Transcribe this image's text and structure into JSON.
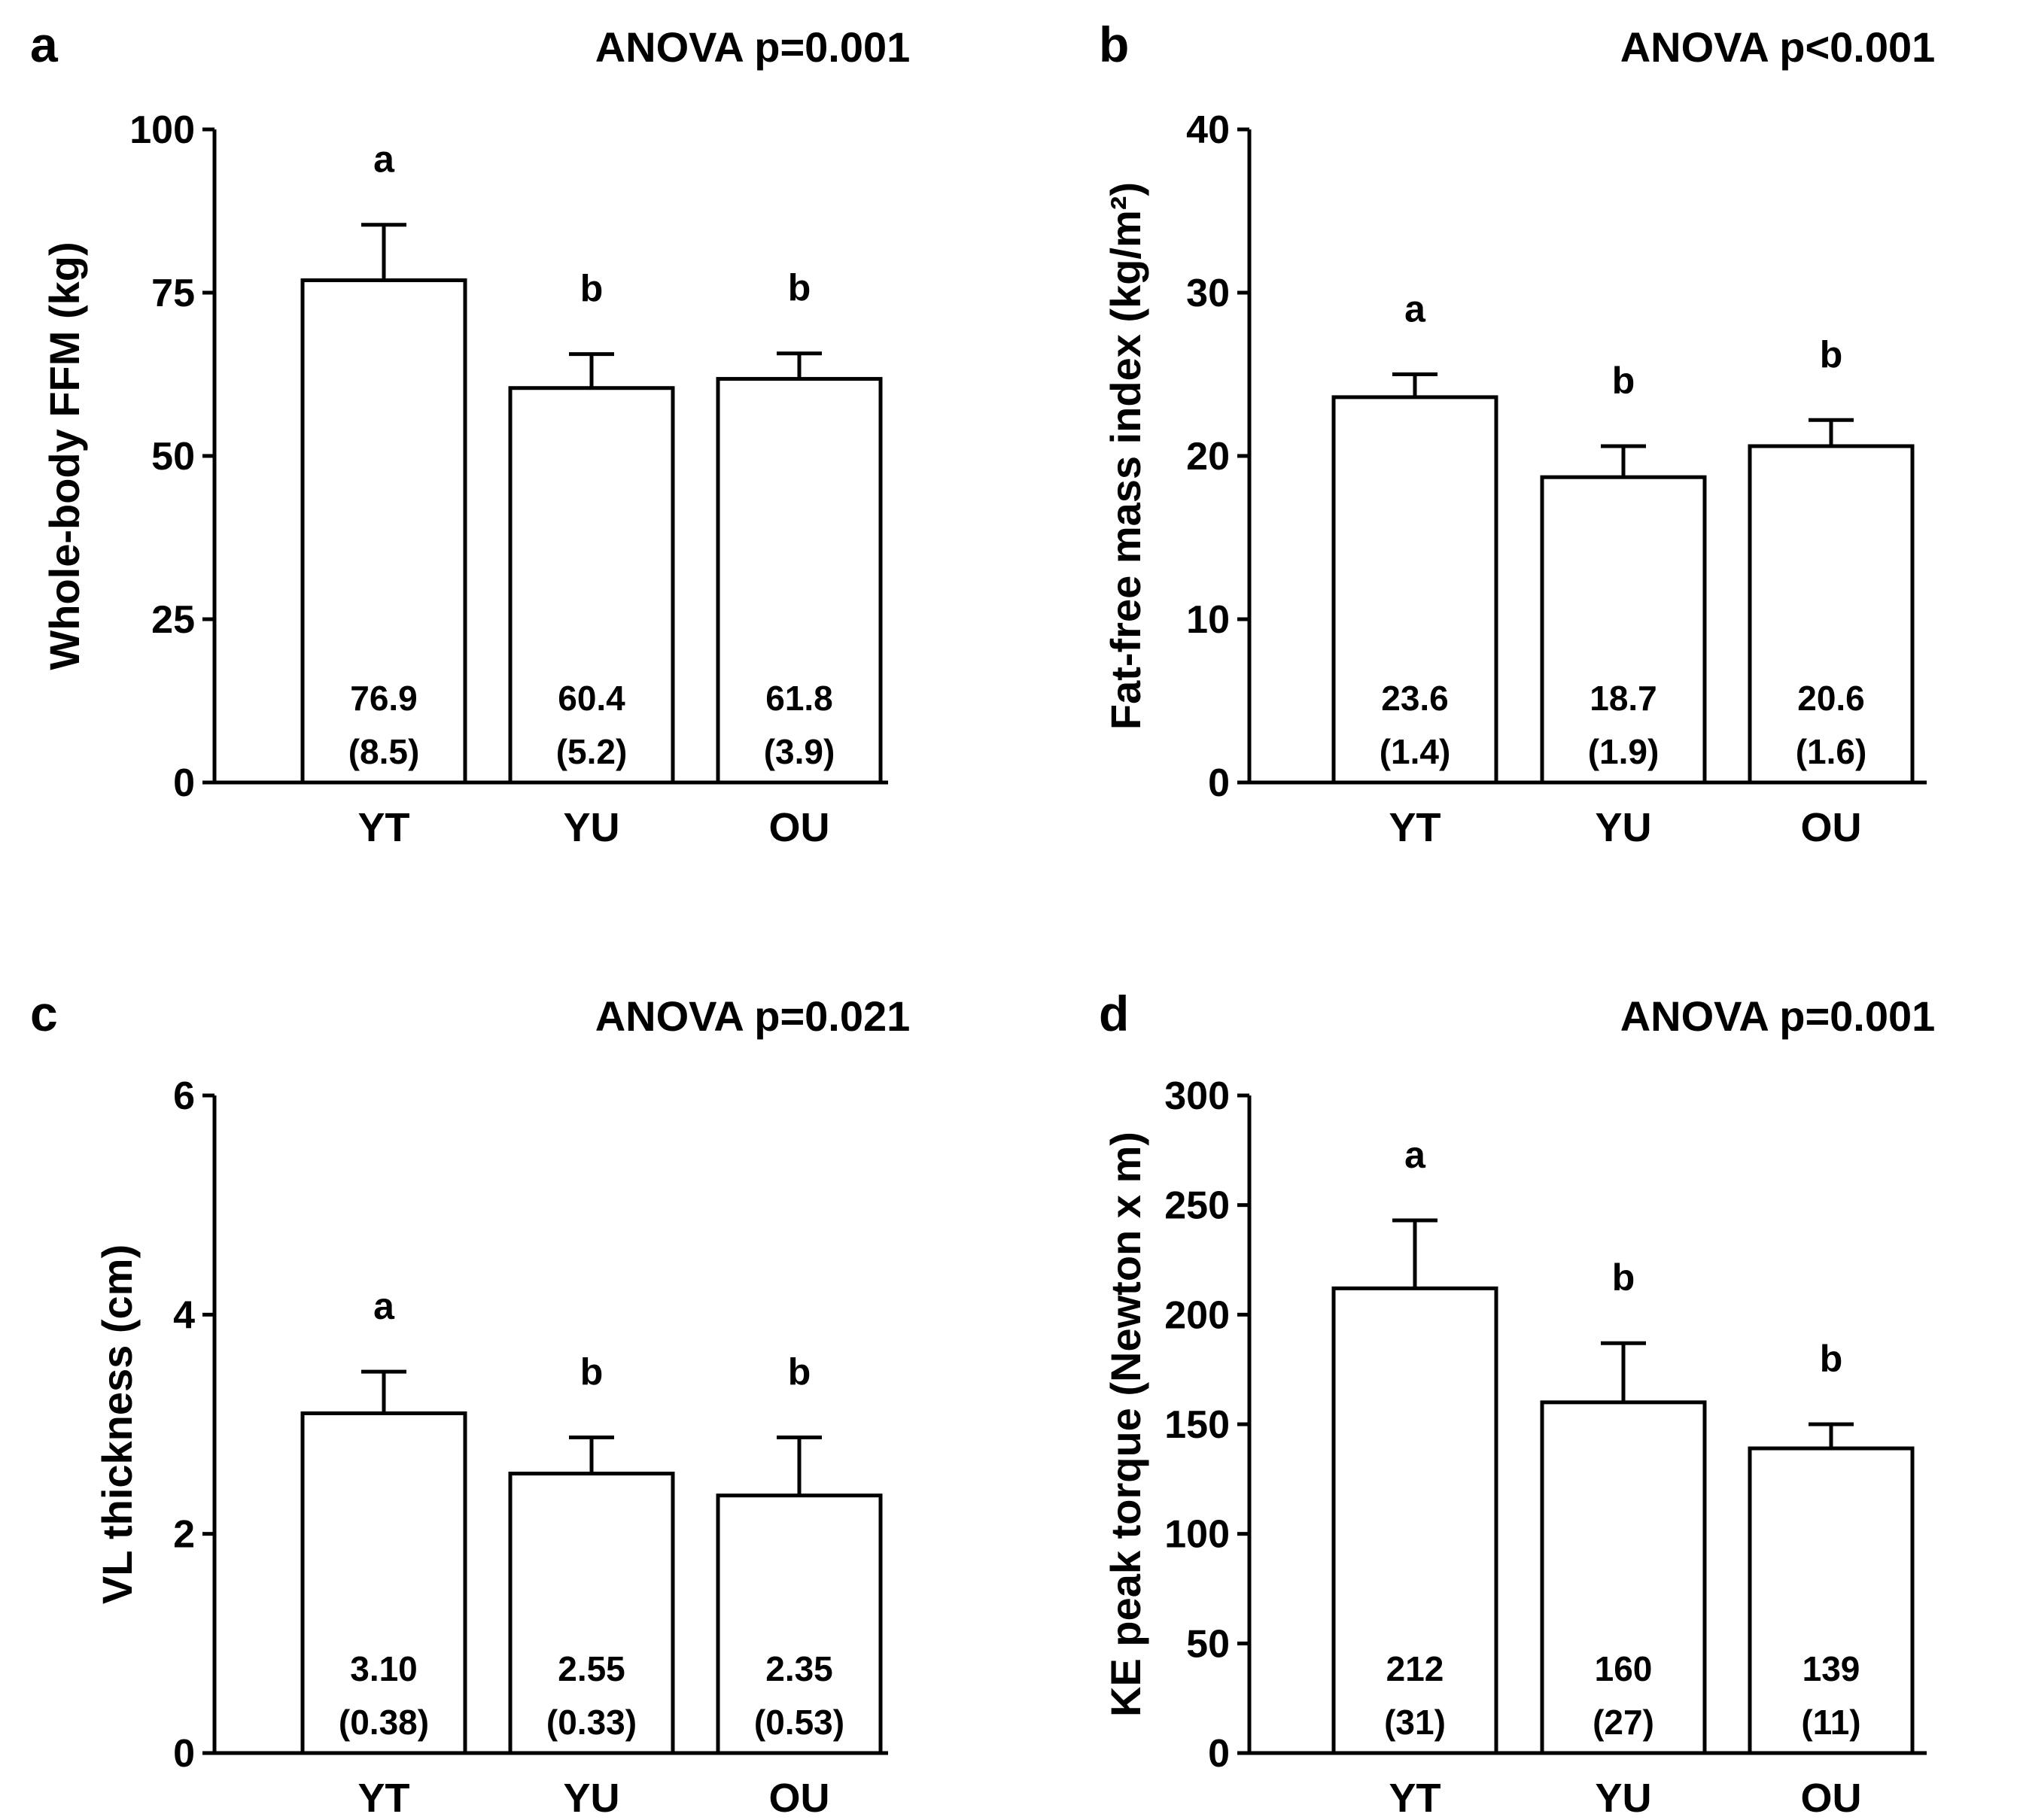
{
  "chart_data": [
    {
      "panel": "a",
      "type": "bar",
      "title": "ANOVA p=0.001",
      "ylabel": "Whole-body FFM (kg)",
      "ylim": [
        0,
        100
      ],
      "yticks": [
        0,
        25,
        50,
        75,
        100
      ],
      "categories": [
        "YT",
        "YU",
        "OU"
      ],
      "values": [
        76.9,
        60.4,
        61.8
      ],
      "sd": [
        8.5,
        5.2,
        3.9
      ],
      "value_labels": [
        "76.9",
        "60.4",
        "61.8"
      ],
      "sd_labels": [
        "(8.5)",
        "(5.2)",
        "(3.9)"
      ],
      "significance": [
        "a",
        "b",
        "b"
      ]
    },
    {
      "panel": "b",
      "type": "bar",
      "title": "ANOVA p<0.001",
      "ylabel": "Fat-free mass index  (kg/m²)",
      "ylim": [
        0,
        40
      ],
      "yticks": [
        0,
        10,
        20,
        30,
        40
      ],
      "categories": [
        "YT",
        "YU",
        "OU"
      ],
      "values": [
        23.6,
        18.7,
        20.6
      ],
      "sd": [
        1.4,
        1.9,
        1.6
      ],
      "value_labels": [
        "23.6",
        "18.7",
        "20.6"
      ],
      "sd_labels": [
        "(1.4)",
        "(1.9)",
        "(1.6)"
      ],
      "significance": [
        "a",
        "b",
        "b"
      ]
    },
    {
      "panel": "c",
      "type": "bar",
      "title": "ANOVA p=0.021",
      "ylabel": "VL thickness (cm)",
      "ylim": [
        0,
        6
      ],
      "yticks": [
        0,
        2,
        4,
        6
      ],
      "categories": [
        "YT",
        "YU",
        "OU"
      ],
      "values": [
        3.1,
        2.55,
        2.35
      ],
      "sd": [
        0.38,
        0.33,
        0.53
      ],
      "value_labels": [
        "3.10",
        "2.55",
        "2.35"
      ],
      "sd_labels": [
        "(0.38)",
        "(0.33)",
        "(0.53)"
      ],
      "significance": [
        "a",
        "b",
        "b"
      ]
    },
    {
      "panel": "d",
      "type": "bar",
      "title": "ANOVA p=0.001",
      "ylabel": "KE peak torque (Newton x m)",
      "ylim": [
        0,
        300
      ],
      "yticks": [
        0,
        50,
        100,
        150,
        200,
        250,
        300
      ],
      "categories": [
        "YT",
        "YU",
        "OU"
      ],
      "values": [
        212,
        160,
        139
      ],
      "sd": [
        31,
        27,
        11
      ],
      "value_labels": [
        "212",
        "160",
        "139"
      ],
      "sd_labels": [
        "(31)",
        "(27)",
        "(11)"
      ],
      "significance": [
        "a",
        "b",
        "b"
      ]
    }
  ]
}
